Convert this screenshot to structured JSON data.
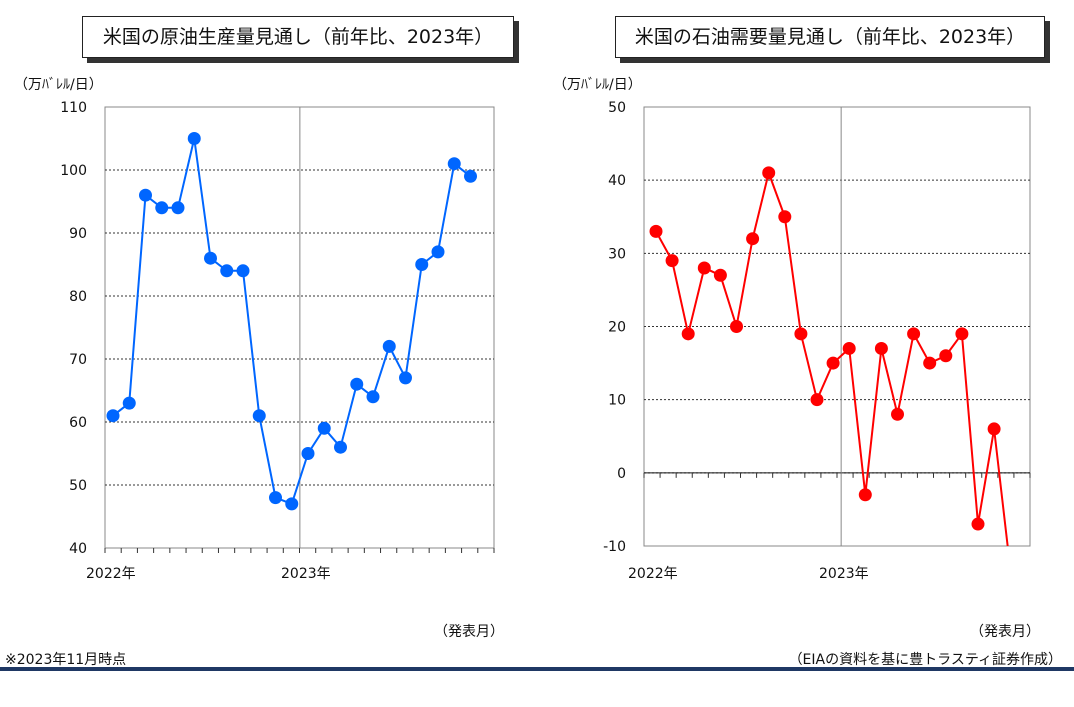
{
  "note": "※2023年11月時点",
  "source": "（EIAの資料を基に豊トラスティ証券作成）",
  "chart_data": [
    {
      "type": "line",
      "title": "米国の原油生産量見通し（前年比、2023年）",
      "ylabel": "（万ﾊﾞﾚﾙ/日）",
      "xlabel": "（発表月）",
      "ylim": [
        40,
        110
      ],
      "yticks": [
        40,
        50,
        60,
        70,
        80,
        90,
        100,
        110
      ],
      "grid": "horizontal dashed",
      "xtick_labels": [
        "2022年",
        "2023年"
      ],
      "color": "#0066ff",
      "series": [
        {
          "values": [
            61,
            63,
            96,
            94,
            94,
            105,
            86,
            84,
            84,
            61,
            48,
            47,
            55,
            59,
            56,
            66,
            64,
            72,
            67,
            85,
            87,
            101,
            99
          ]
        }
      ]
    },
    {
      "type": "line",
      "title": "米国の石油需要量見通し（前年比、2023年）",
      "ylabel": "（万ﾊﾞﾚﾙ/日）",
      "xlabel": "（発表月）",
      "ylim": [
        -10,
        50
      ],
      "yticks": [
        -10,
        0,
        10,
        20,
        30,
        40,
        50
      ],
      "grid": "horizontal dashed",
      "xtick_labels": [
        "2022年",
        "2023年"
      ],
      "color": "#ff0000",
      "series": [
        {
          "values": [
            33,
            29,
            19,
            28,
            27,
            20,
            32,
            41,
            35,
            19,
            10,
            15,
            17,
            -3,
            17,
            8,
            19,
            15,
            16,
            19,
            -7,
            6,
            -13
          ]
        }
      ]
    }
  ]
}
